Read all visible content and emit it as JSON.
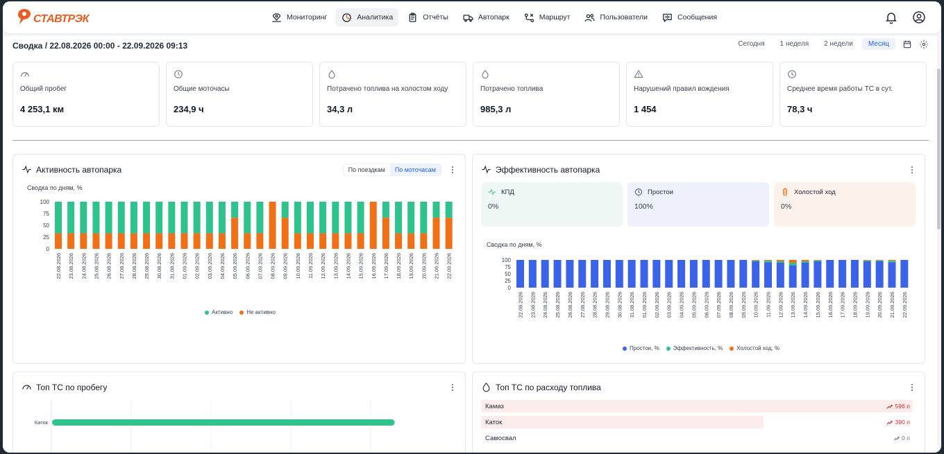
{
  "app": {
    "logo_text": "СТАВТРЭК"
  },
  "nav": [
    {
      "id": "monitoring",
      "label": "Мониторинг",
      "icon": "map-monitor-icon"
    },
    {
      "id": "analytics",
      "label": "Аналитика",
      "icon": "pie-chart-icon",
      "active": true
    },
    {
      "id": "reports",
      "label": "Отчёты",
      "icon": "clipboard-icon"
    },
    {
      "id": "fleet",
      "label": "Автопарк",
      "icon": "truck-icon"
    },
    {
      "id": "route",
      "label": "Маршрут",
      "icon": "route-icon"
    },
    {
      "id": "users",
      "label": "Пользователи",
      "icon": "users-icon"
    },
    {
      "id": "messages",
      "label": "Сообщения",
      "icon": "message-icon"
    }
  ],
  "header": {
    "summary": "Сводка / 22.08.2026 00:00 - 22.09.2026 09:13",
    "ranges": [
      "Сегодня",
      "1 неделя",
      "2 недели",
      "Месяц"
    ],
    "active_range": "Месяц"
  },
  "kpis": [
    {
      "label": "Общий пробег",
      "value": "4 253,1 км",
      "icon": "speedometer-icon"
    },
    {
      "label": "Общие моточасы",
      "value": "234,9 ч",
      "icon": "clock-icon"
    },
    {
      "label": "Потрачено топлива на холостом ходу",
      "value": "34,3 л",
      "icon": "fuel-drop-icon"
    },
    {
      "label": "Потрачено топлива",
      "value": "985,3 л",
      "icon": "fuel-drop-icon"
    },
    {
      "label": "Нарушений правил вождения",
      "value": "1 454",
      "icon": "warning-icon"
    },
    {
      "label": "Среднее время работы ТС в сут.",
      "value": "78,3 ч",
      "icon": "clock-icon"
    }
  ],
  "activity": {
    "title": "Активность автопарка",
    "toggle": [
      "По поездкам",
      "По моточасам"
    ],
    "active_toggle": "По моточасам",
    "subtitle": "Сводка по дням, %"
  },
  "efficiency": {
    "title": "Эффективность автопарка",
    "cards": [
      {
        "label": "КПД",
        "value": "0%",
        "icon": "pulse-icon",
        "bg": "#eef7f3"
      },
      {
        "label": "Простои",
        "value": "100%",
        "icon": "clock-icon",
        "bg": "#eef1fb"
      },
      {
        "label": "Холостой ход",
        "value": "0%",
        "icon": "battery-icon",
        "bg": "#fdf1ec"
      }
    ],
    "subtitle": "Сводка по дням, %"
  },
  "top_mileage": {
    "title": "Топ ТС по пробегу",
    "rows": [
      {
        "name": "Каток",
        "fraction": 0.86
      }
    ]
  },
  "top_fuel": {
    "title": "Топ ТС по расходу топлива",
    "rows": [
      {
        "name": "Камаз",
        "value": "596 л",
        "fraction": 1.0
      },
      {
        "name": "Каток",
        "value": "390 л",
        "fraction": 0.655
      },
      {
        "name": "Самосвал",
        "value": "0 л",
        "fraction": 0.0
      }
    ]
  },
  "chart_data": [
    {
      "type": "bar",
      "stacked": true,
      "title": "Активность автопарка",
      "subtitle": "Сводка по дням, %",
      "categories": [
        "22.08.2026",
        "23.08.2026",
        "24.08.2026",
        "25.08.2026",
        "26.08.2026",
        "27.08.2026",
        "28.08.2026",
        "29.08.2026",
        "30.08.2026",
        "31.08.2026",
        "01.09.2026",
        "02.09.2026",
        "03.09.2026",
        "04.09.2026",
        "05.09.2026",
        "06.09.2026",
        "07.09.2026",
        "08.09.2026",
        "09.09.2026",
        "10.09.2026",
        "11.09.2026",
        "12.09.2026",
        "13.09.2026",
        "14.09.2026",
        "15.09.2026",
        "16.09.2026",
        "17.09.2026",
        "18.09.2026",
        "19.09.2026",
        "20.09.2026",
        "21.09.2026",
        "22.09.2026"
      ],
      "series": [
        {
          "name": "Не активно",
          "color": "#f07018",
          "values": [
            33,
            33,
            33,
            33,
            33,
            33,
            33,
            33,
            33,
            33,
            33,
            33,
            33,
            33,
            66,
            33,
            33,
            100,
            66,
            33,
            33,
            33,
            33,
            33,
            33,
            100,
            66,
            33,
            33,
            33,
            66,
            66
          ]
        },
        {
          "name": "Активно",
          "color": "#2fc28d",
          "values": [
            67,
            67,
            67,
            67,
            67,
            67,
            67,
            67,
            67,
            67,
            67,
            67,
            67,
            67,
            34,
            67,
            67,
            0,
            34,
            67,
            67,
            67,
            67,
            67,
            67,
            0,
            34,
            67,
            67,
            67,
            34,
            34
          ]
        }
      ],
      "yticks": [
        0,
        25,
        50,
        75,
        100
      ],
      "ylim": [
        0,
        100
      ],
      "legend": [
        "Активно",
        "Не активно"
      ]
    },
    {
      "type": "bar",
      "stacked": true,
      "title": "Эффективность автопарка",
      "subtitle": "Сводка по дням, %",
      "categories": [
        "22.08.2026",
        "23.08.2026",
        "24.08.2026",
        "25.08.2026",
        "26.08.2026",
        "27.08.2026",
        "28.08.2026",
        "29.08.2026",
        "30.08.2026",
        "31.08.2026",
        "01.09.2026",
        "02.09.2026",
        "03.09.2026",
        "04.09.2026",
        "05.09.2026",
        "06.09.2026",
        "07.09.2026",
        "08.09.2026",
        "09.09.2026",
        "10.09.2026",
        "11.09.2026",
        "12.09.2026",
        "13.09.2026",
        "14.09.2026",
        "15.09.2026",
        "16.09.2026",
        "17.09.2026",
        "18.09.2026",
        "19.09.2026",
        "20.09.2026",
        "21.09.2026",
        "22.09.2026"
      ],
      "series": [
        {
          "name": "Простои, %",
          "color": "#3b63e8",
          "values": [
            100,
            100,
            100,
            100,
            100,
            100,
            100,
            100,
            100,
            100,
            100,
            100,
            100,
            100,
            100,
            100,
            100,
            100,
            100,
            95,
            92,
            90,
            80,
            90,
            95,
            100,
            100,
            100,
            95,
            95,
            92,
            100
          ]
        },
        {
          "name": "Эффективность, %",
          "color": "#2fc28d",
          "values": [
            0,
            0,
            0,
            0,
            0,
            0,
            0,
            0,
            0,
            0,
            0,
            0,
            0,
            0,
            0,
            0,
            0,
            0,
            0,
            3,
            5,
            5,
            10,
            5,
            3,
            0,
            0,
            0,
            3,
            3,
            5,
            0
          ]
        },
        {
          "name": "Холостой ход, %",
          "color": "#f07018",
          "values": [
            0,
            0,
            0,
            0,
            0,
            0,
            0,
            0,
            0,
            0,
            0,
            0,
            0,
            0,
            0,
            0,
            0,
            0,
            0,
            2,
            3,
            5,
            10,
            5,
            2,
            0,
            0,
            0,
            2,
            2,
            3,
            0
          ]
        }
      ],
      "yticks": [
        0,
        25,
        50,
        75,
        100
      ],
      "ylim": [
        0,
        100
      ],
      "legend": [
        "Простои, %",
        "Эффективность, %",
        "Холостой ход, %"
      ]
    }
  ]
}
